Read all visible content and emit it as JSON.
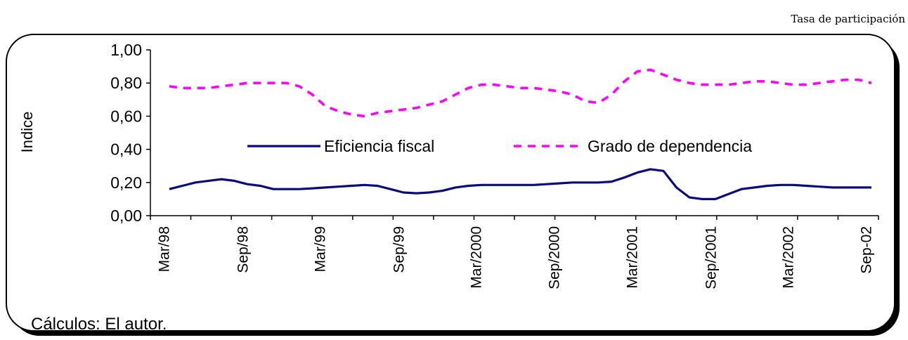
{
  "header": {
    "note": "Tasa de participación"
  },
  "footer": {
    "note": "Cálculos: El autor."
  },
  "colors": {
    "series_1": "#0a0a80",
    "series_2": "#ff00ff",
    "axis": "#000000"
  },
  "chart_data": {
    "type": "line",
    "title": "",
    "xlabel": "",
    "ylabel": "Indice",
    "ylim": [
      0,
      1
    ],
    "yticks": [
      "0,00",
      "0,20",
      "0,40",
      "0,60",
      "0,80",
      "1,00"
    ],
    "grid": false,
    "legend_position": "center",
    "x_tick_labels": [
      "Mar/98",
      "Sep/98",
      "Mar/99",
      "Sep/99",
      "Mar/2000",
      "Sep/2000",
      "Mar/2001",
      "Sep/2001",
      "Mar/2002",
      "Sep-02"
    ],
    "x": [
      "Mar/98",
      "Apr/98",
      "May/98",
      "Jun/98",
      "Jul/98",
      "Aug/98",
      "Sep/98",
      "Oct/98",
      "Nov/98",
      "Dec/98",
      "Jan/99",
      "Feb/99",
      "Mar/99",
      "Apr/99",
      "May/99",
      "Jun/99",
      "Jul/99",
      "Aug/99",
      "Sep/99",
      "Oct/99",
      "Nov/99",
      "Dec/99",
      "Jan/2000",
      "Feb/2000",
      "Mar/2000",
      "Apr/2000",
      "May/2000",
      "Jun/2000",
      "Jul/2000",
      "Aug/2000",
      "Sep/2000",
      "Oct/2000",
      "Nov/2000",
      "Dec/2000",
      "Jan/2001",
      "Feb/2001",
      "Mar/2001",
      "Apr/2001",
      "May/2001",
      "Jun/2001",
      "Jul/2001",
      "Aug/2001",
      "Sep/2001",
      "Oct/2001",
      "Nov/2001",
      "Dec/2001",
      "Jan/2002",
      "Feb/2002",
      "Mar/2002",
      "Apr/2002",
      "May/2002",
      "Jun/2002",
      "Jul/2002",
      "Aug/2002",
      "Sep-02"
    ],
    "series": [
      {
        "name": "Eficiencia fiscal",
        "style": "solid",
        "color": "#0a0a80",
        "values": [
          0.16,
          0.18,
          0.2,
          0.21,
          0.22,
          0.21,
          0.19,
          0.18,
          0.16,
          0.16,
          0.16,
          0.165,
          0.17,
          0.175,
          0.18,
          0.185,
          0.18,
          0.16,
          0.14,
          0.135,
          0.14,
          0.15,
          0.17,
          0.18,
          0.185,
          0.185,
          0.185,
          0.185,
          0.185,
          0.19,
          0.195,
          0.2,
          0.2,
          0.2,
          0.205,
          0.23,
          0.26,
          0.28,
          0.27,
          0.17,
          0.11,
          0.1,
          0.1,
          0.13,
          0.16,
          0.17,
          0.18,
          0.185,
          0.185,
          0.18,
          0.175,
          0.17,
          0.17,
          0.17,
          0.17
        ]
      },
      {
        "name": "Grado de dependencia",
        "style": "dashed",
        "color": "#ff00ff",
        "values": [
          0.78,
          0.77,
          0.77,
          0.77,
          0.78,
          0.79,
          0.8,
          0.8,
          0.8,
          0.8,
          0.78,
          0.73,
          0.66,
          0.63,
          0.61,
          0.6,
          0.62,
          0.63,
          0.64,
          0.65,
          0.67,
          0.69,
          0.73,
          0.77,
          0.79,
          0.79,
          0.78,
          0.77,
          0.77,
          0.76,
          0.75,
          0.73,
          0.69,
          0.68,
          0.73,
          0.81,
          0.87,
          0.88,
          0.85,
          0.82,
          0.8,
          0.79,
          0.79,
          0.79,
          0.8,
          0.81,
          0.81,
          0.8,
          0.79,
          0.79,
          0.8,
          0.81,
          0.82,
          0.82,
          0.8
        ]
      }
    ]
  }
}
